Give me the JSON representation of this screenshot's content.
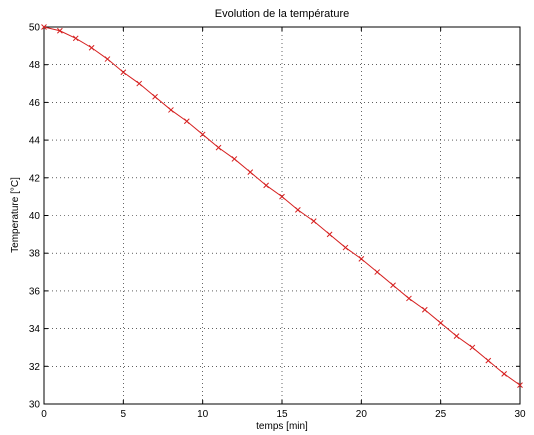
{
  "colors": {
    "series": "#d62020",
    "axis": "#000000",
    "grid": "#000000"
  },
  "chart_data": {
    "type": "line",
    "title": "Evolution de la température",
    "xlabel": "temps [min]",
    "ylabel": "Temperature [°C]",
    "xlim": [
      0,
      30
    ],
    "ylim": [
      30,
      50
    ],
    "xticks": [
      0,
      5,
      10,
      15,
      20,
      25,
      30
    ],
    "yticks": [
      30,
      32,
      34,
      36,
      38,
      40,
      42,
      44,
      46,
      48,
      50
    ],
    "grid": true,
    "series": [
      {
        "marker": "x",
        "line": "solid",
        "x": [
          0,
          1,
          2,
          3,
          4,
          5,
          6,
          7,
          8,
          9,
          10,
          11,
          12,
          13,
          14,
          15,
          16,
          17,
          18,
          19,
          20,
          21,
          22,
          23,
          24,
          25,
          26,
          27,
          28,
          29,
          30
        ],
        "y": [
          50.0,
          49.8,
          49.4,
          48.9,
          48.3,
          47.6,
          47.0,
          46.3,
          45.6,
          45.0,
          44.3,
          43.6,
          43.0,
          42.3,
          41.6,
          41.0,
          40.3,
          39.7,
          39.0,
          38.3,
          37.7,
          37.0,
          36.3,
          35.6,
          35.0,
          34.3,
          33.6,
          33.0,
          32.3,
          31.6,
          31.0
        ]
      }
    ]
  }
}
